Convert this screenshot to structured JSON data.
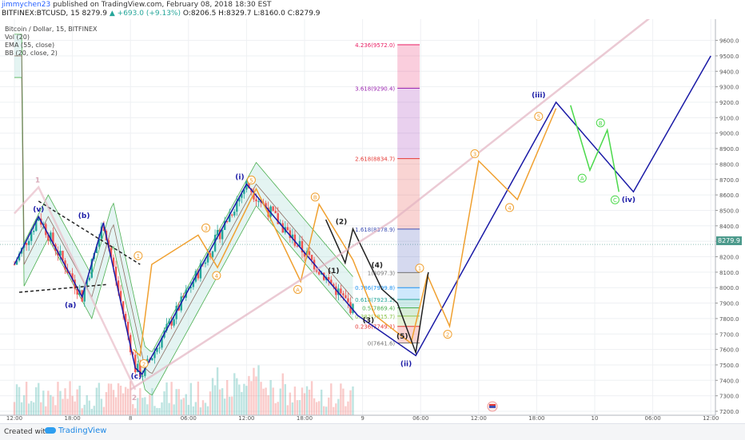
{
  "header": {
    "author": "jimmychen23",
    "published_text": "published on TradingView.com, February 08, 2018 18:30 EST",
    "symbol": "BITFINEX:BTCUSD, 15",
    "last": "8279.9",
    "change": "+693.0 (+9.13%)",
    "ohlc": "O:8206.5 H:8329.7 L:8160.0 C:8279.9"
  },
  "legend": {
    "title": "Bitcoin / Dollar, 15, BITFINEX",
    "vol": "Vol (20)",
    "ema": "EMA (55, close)",
    "bb": "BB (20, close, 2)"
  },
  "price_tag": "8279.9",
  "footer": {
    "created": "Created with",
    "brand": "TradingView"
  },
  "chart_data": {
    "type": "line",
    "title": "Bitcoin / Dollar, 15, BITFINEX",
    "xlabel": "",
    "ylabel": "",
    "ylim": [
      7200,
      9700
    ],
    "grid": true,
    "y_ticks": [
      7200,
      7300,
      7400,
      7500,
      7600,
      7700,
      7800,
      7900,
      8000,
      8100,
      8200,
      8300,
      8400,
      8500,
      8600,
      8700,
      8800,
      8900,
      9000,
      9100,
      9200,
      9300,
      9400,
      9500,
      9600
    ],
    "x_ticks": [
      {
        "label": "12:00",
        "x": 0
      },
      {
        "label": "18:00",
        "x": 6
      },
      {
        "label": "8",
        "x": 12
      },
      {
        "label": "06:00",
        "x": 18
      },
      {
        "label": "12:00",
        "x": 24
      },
      {
        "label": "18:00",
        "x": 30
      },
      {
        "label": "9",
        "x": 36
      },
      {
        "label": "06:00",
        "x": 42
      },
      {
        "label": "12:00",
        "x": 48
      },
      {
        "label": "18:00",
        "x": 54
      },
      {
        "label": "10",
        "x": 60
      },
      {
        "label": "06:00",
        "x": 66
      },
      {
        "label": "12:00",
        "x": 72
      }
    ],
    "fib_levels": [
      {
        "label": "4.236(9572.0)",
        "ratio": 4.236,
        "price": 9572.0,
        "color": "#e91e63"
      },
      {
        "label": "3.618(9290.4)",
        "ratio": 3.618,
        "price": 9290.4,
        "color": "#9c27b0"
      },
      {
        "label": "2.618(8834.7)",
        "ratio": 2.618,
        "price": 8834.7,
        "color": "#e53935"
      },
      {
        "label": "1.618(8378.9)",
        "ratio": 1.618,
        "price": 8378.9,
        "color": "#3f51b5"
      },
      {
        "label": "1(8097.3)",
        "ratio": 1,
        "price": 8097.3,
        "color": "#777777"
      },
      {
        "label": "0.786(7999.8)",
        "ratio": 0.786,
        "price": 7999.8,
        "color": "#2196f3"
      },
      {
        "label": "0.618(7923.2)",
        "ratio": 0.618,
        "price": 7923.2,
        "color": "#26a69a"
      },
      {
        "label": "0.5(7869.4)",
        "ratio": 0.5,
        "price": 7869.4,
        "color": "#4caf50"
      },
      {
        "label": "0.382(7815.7)",
        "ratio": 0.382,
        "price": 7815.7,
        "color": "#8bc34a"
      },
      {
        "label": "0.236(7749.1)",
        "ratio": 0.236,
        "price": 7749.1,
        "color": "#e53935"
      },
      {
        "label": "0(7641.6)",
        "ratio": 0,
        "price": 7641.6,
        "color": "#777777"
      }
    ],
    "series": [
      {
        "kind": "wave",
        "color": "#1a1aa6",
        "points": [
          [
            0,
            8150
          ],
          [
            2.5,
            8460
          ],
          [
            7,
            7940
          ],
          [
            9.2,
            8420
          ],
          [
            12.5,
            7480
          ],
          [
            13.2,
            7440
          ],
          [
            24,
            8670
          ],
          [
            35.5,
            7820
          ],
          [
            41.5,
            7560
          ],
          [
            56,
            9200
          ],
          [
            64,
            8620
          ],
          [
            72,
            9500
          ]
        ]
      },
      {
        "kind": "wave",
        "color": "#f0a030",
        "points": [
          [
            12.3,
            7600
          ],
          [
            13,
            7560
          ],
          [
            14.2,
            8150
          ],
          [
            19,
            8340
          ],
          [
            21,
            8130
          ],
          [
            25,
            8640
          ],
          [
            29.6,
            8040
          ],
          [
            31.5,
            8540
          ],
          [
            35,
            8180
          ],
          [
            37.3,
            7820
          ],
          [
            41,
            7640
          ],
          [
            42.7,
            8080
          ],
          [
            45,
            7750
          ],
          [
            48,
            8820
          ],
          [
            52,
            8570
          ],
          [
            56,
            9160
          ]
        ]
      },
      {
        "kind": "wave",
        "color": "#4cd94c",
        "points": [
          [
            57.5,
            9180
          ],
          [
            59.5,
            8760
          ],
          [
            61.3,
            9020
          ],
          [
            62.5,
            8620
          ]
        ]
      },
      {
        "kind": "wave",
        "color": "#222222",
        "points": [
          [
            32.2,
            8440
          ],
          [
            34.2,
            8160
          ],
          [
            35,
            8380
          ],
          [
            38,
            7990
          ],
          [
            39.6,
            7900
          ],
          [
            41.5,
            7580
          ],
          [
            42.8,
            8100
          ]
        ]
      },
      {
        "kind": "wave",
        "color": "#222222",
        "dashed": true,
        "points": [
          [
            2.5,
            8560
          ],
          [
            13,
            8150
          ]
        ]
      },
      {
        "kind": "wave",
        "color": "#222222",
        "dashed": true,
        "points": [
          [
            0.5,
            7970
          ],
          [
            9.5,
            8020
          ]
        ]
      },
      {
        "kind": "trend",
        "color": "#e2b4c2",
        "points": [
          [
            12,
            7340
          ],
          [
            39,
            8430
          ],
          [
            66,
            9760
          ]
        ]
      },
      {
        "kind": "trend",
        "color": "#e8bcc8",
        "points": [
          [
            0,
            8480
          ],
          [
            2.5,
            8650
          ],
          [
            12.5,
            7340
          ]
        ]
      }
    ],
    "wave_labels": [
      {
        "text": "(v)",
        "x": 2.5,
        "y": 8460,
        "pos": "above",
        "color": "#1a1aa6"
      },
      {
        "text": "(b)",
        "x": 7.2,
        "y": 8420,
        "pos": "above",
        "color": "#1a1aa6"
      },
      {
        "text": "(a)",
        "x": 5.8,
        "y": 7940,
        "pos": "below",
        "color": "#1a1aa6"
      },
      {
        "text": "(c)",
        "x": 12.6,
        "y": 7480,
        "pos": "below",
        "color": "#1a1aa6"
      },
      {
        "text": "(i)",
        "x": 23.3,
        "y": 8670,
        "pos": "above",
        "color": "#1a1aa6"
      },
      {
        "text": "(ii)",
        "x": 40.5,
        "y": 7560,
        "pos": "below",
        "color": "#1a1aa6"
      },
      {
        "text": "(iii)",
        "x": 54.2,
        "y": 9200,
        "pos": "above",
        "color": "#1a1aa6"
      },
      {
        "text": "(iv)",
        "x": 63.5,
        "y": 8620,
        "pos": "below",
        "color": "#1a1aa6"
      },
      {
        "text": "1",
        "x": 12.8,
        "y": 8160,
        "pos": "above",
        "color": "#f0a030",
        "circled": true
      },
      {
        "text": "2",
        "x": 13.4,
        "y": 7560,
        "pos": "below",
        "color": "#f0a030",
        "circled": true
      },
      {
        "text": "3",
        "x": 19.8,
        "y": 8340,
        "pos": "above",
        "color": "#f0a030",
        "circled": true
      },
      {
        "text": "4",
        "x": 20.9,
        "y": 8130,
        "pos": "below",
        "color": "#f0a030",
        "circled": true
      },
      {
        "text": "5",
        "x": 24.5,
        "y": 8650,
        "pos": "above",
        "color": "#f0a030",
        "circled": true
      },
      {
        "text": "A",
        "x": 29.3,
        "y": 8040,
        "pos": "below",
        "color": "#f0a030",
        "circled": true
      },
      {
        "text": "B",
        "x": 31.1,
        "y": 8540,
        "pos": "above",
        "color": "#f0a030",
        "circled": true
      },
      {
        "text": "1",
        "x": 41.9,
        "y": 8080,
        "pos": "above",
        "color": "#f0a030",
        "circled": true
      },
      {
        "text": "2",
        "x": 44.8,
        "y": 7750,
        "pos": "below",
        "color": "#f0a030",
        "circled": true
      },
      {
        "text": "3",
        "x": 47.6,
        "y": 8820,
        "pos": "above",
        "color": "#f0a030",
        "circled": true
      },
      {
        "text": "4",
        "x": 51.2,
        "y": 8570,
        "pos": "below",
        "color": "#f0a030",
        "circled": true
      },
      {
        "text": "5",
        "x": 54.2,
        "y": 9160,
        "pos": "below",
        "color": "#f0a030",
        "circled": true
      },
      {
        "text": "A",
        "x": 58.7,
        "y": 8760,
        "pos": "below",
        "color": "#4cd94c",
        "circled": true
      },
      {
        "text": "B",
        "x": 60.6,
        "y": 9020,
        "pos": "above",
        "color": "#4cd94c",
        "circled": true
      },
      {
        "text": "C",
        "x": 62.1,
        "y": 8620,
        "pos": "below",
        "color": "#4cd94c",
        "circled": true
      },
      {
        "text": "(2)",
        "x": 33.8,
        "y": 8380,
        "pos": "above",
        "color": "#222222"
      },
      {
        "text": "(1)",
        "x": 33.0,
        "y": 8160,
        "pos": "below",
        "color": "#222222"
      },
      {
        "text": "(3)",
        "x": 36.6,
        "y": 7840,
        "pos": "below",
        "color": "#222222"
      },
      {
        "text": "(4)",
        "x": 37.5,
        "y": 8100,
        "pos": "above",
        "color": "#222222"
      },
      {
        "text": "(5)",
        "x": 40.1,
        "y": 7640,
        "pos": "above",
        "color": "#222222"
      },
      {
        "text": "1",
        "x": 2.4,
        "y": 8650,
        "pos": "above",
        "color": "#d8aab8"
      },
      {
        "text": "2",
        "x": 12.4,
        "y": 7340,
        "pos": "below",
        "color": "#d8aab8"
      }
    ]
  }
}
